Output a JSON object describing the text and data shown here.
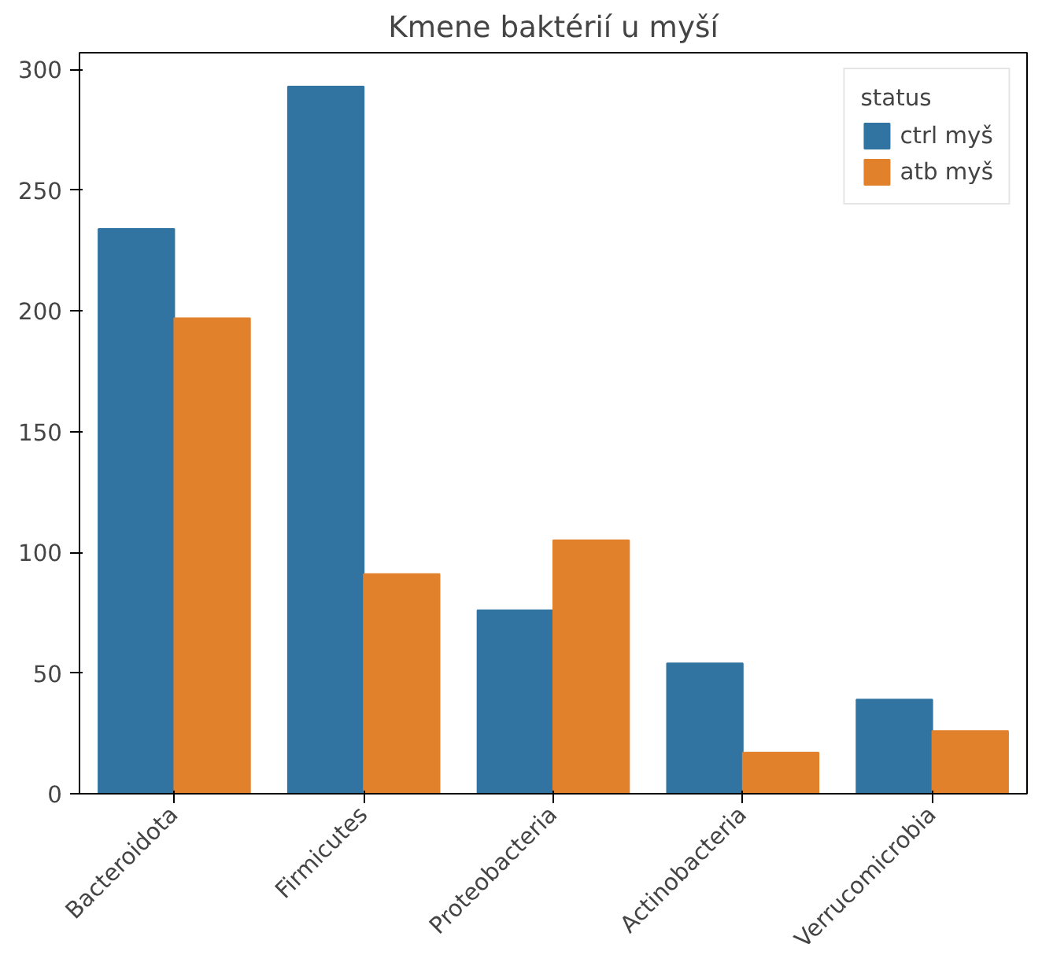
{
  "chart_data": {
    "type": "bar",
    "title": "Kmene baktérií u myší",
    "legend_title": "status",
    "legend": "top right",
    "grid": false,
    "categories": [
      "Bacteroidota",
      "Firmicutes",
      "Proteobacteria",
      "Actinobacteria",
      "Verrucomicrobia"
    ],
    "series": [
      {
        "name": "ctrl myš",
        "color": "#3274a1",
        "values": [
          234,
          293,
          76,
          54,
          39
        ]
      },
      {
        "name": "atb myš",
        "color": "#e1812c",
        "values": [
          197,
          91,
          105,
          17,
          26
        ]
      }
    ],
    "ylim": [
      0,
      307
    ],
    "yticks": [
      0,
      50,
      100,
      150,
      200,
      250,
      300
    ]
  }
}
